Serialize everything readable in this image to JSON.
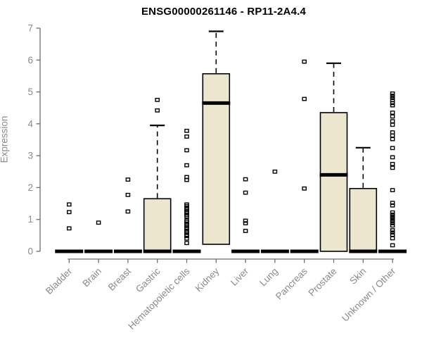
{
  "chart_data": {
    "type": "boxplot",
    "title": "ENSG00000261146 - RP11-2A4.4",
    "ylabel": "Expression",
    "xlabel": "",
    "ylim": [
      0,
      7
    ],
    "yticks": [
      0,
      1,
      2,
      3,
      4,
      5,
      6,
      7
    ],
    "grid": false,
    "legend": "none",
    "colors": {
      "box_fill": "#ebe6cd",
      "box_border": "#000000",
      "axis_line": "#6e6e6e",
      "axis_text": "#8a8a8a",
      "title_text": "#000000"
    },
    "categories": [
      "Bladder",
      "Brain",
      "Breast",
      "Gastric",
      "Hematopoietic cells",
      "Kidney",
      "Liver",
      "Lung",
      "Pancreas",
      "Prostate",
      "Skin",
      "Unknown / Other"
    ],
    "boxes": [
      {
        "category": "Bladder",
        "q1": 0,
        "median": 0,
        "q3": 0,
        "whisker_low": 0,
        "whisker_high": 0,
        "outliers": [
          1.47,
          1.23,
          0.72
        ]
      },
      {
        "category": "Brain",
        "q1": 0,
        "median": 0,
        "q3": 0,
        "whisker_low": 0,
        "whisker_high": 0,
        "outliers": [
          0.9
        ]
      },
      {
        "category": "Breast",
        "q1": 0,
        "median": 0,
        "q3": 0,
        "whisker_low": 0,
        "whisker_high": 0,
        "outliers": [
          2.25,
          1.77,
          1.25
        ]
      },
      {
        "category": "Gastric",
        "q1": 0,
        "median": 0,
        "q3": 1.65,
        "whisker_low": 0,
        "whisker_high": 3.95,
        "outliers": [
          4.75,
          4.42
        ]
      },
      {
        "category": "Hematopoietic cells",
        "q1": 0,
        "median": 0,
        "q3": 0,
        "whisker_low": 0,
        "whisker_high": 0,
        "outliers": [
          3.78,
          3.6,
          3.17,
          2.7,
          2.33,
          2.24,
          1.47,
          1.42,
          1.36,
          1.31,
          1.25,
          1.2,
          1.14,
          1.09,
          0.96,
          0.91,
          0.85,
          0.8,
          0.74,
          0.69,
          0.63,
          0.58,
          0.52,
          0.48,
          0.4,
          0.26
        ]
      },
      {
        "category": "Kidney",
        "q1": 0.22,
        "median": 4.65,
        "q3": 5.57,
        "whisker_low": 0.22,
        "whisker_high": 6.9,
        "outliers": []
      },
      {
        "category": "Liver",
        "q1": 0,
        "median": 0,
        "q3": 0,
        "whisker_low": 0,
        "whisker_high": 0,
        "outliers": [
          2.26,
          1.84,
          0.96,
          0.88,
          0.64
        ]
      },
      {
        "category": "Lung",
        "q1": 0,
        "median": 0,
        "q3": 0,
        "whisker_low": 0,
        "whisker_high": 0,
        "outliers": [
          2.5
        ]
      },
      {
        "category": "Pancreas",
        "q1": 0,
        "median": 0,
        "q3": 0,
        "whisker_low": 0,
        "whisker_high": 0,
        "outliers": [
          5.95,
          4.78,
          1.97
        ]
      },
      {
        "category": "Prostate",
        "q1": 0,
        "median": 2.4,
        "q3": 4.35,
        "whisker_low": 0,
        "whisker_high": 5.9,
        "outliers": []
      },
      {
        "category": "Skin",
        "q1": 0,
        "median": 0,
        "q3": 1.97,
        "whisker_low": 0,
        "whisker_high": 3.25,
        "outliers": []
      },
      {
        "category": "Unknown / Other",
        "q1": 0,
        "median": 0,
        "q3": 0,
        "whisker_low": 0,
        "whisker_high": 0,
        "outliers": [
          4.95,
          4.88,
          4.81,
          4.74,
          4.65,
          4.58,
          4.35,
          4.23,
          4.08,
          3.97,
          3.73,
          3.63,
          3.52,
          3.24,
          2.95,
          2.74,
          2.62,
          1.92,
          1.52,
          1.44,
          1.22,
          1.15,
          1.08,
          1.02,
          0.95,
          0.88,
          0.81,
          0.66,
          0.59,
          0.52,
          0.41,
          0.19
        ]
      }
    ]
  }
}
